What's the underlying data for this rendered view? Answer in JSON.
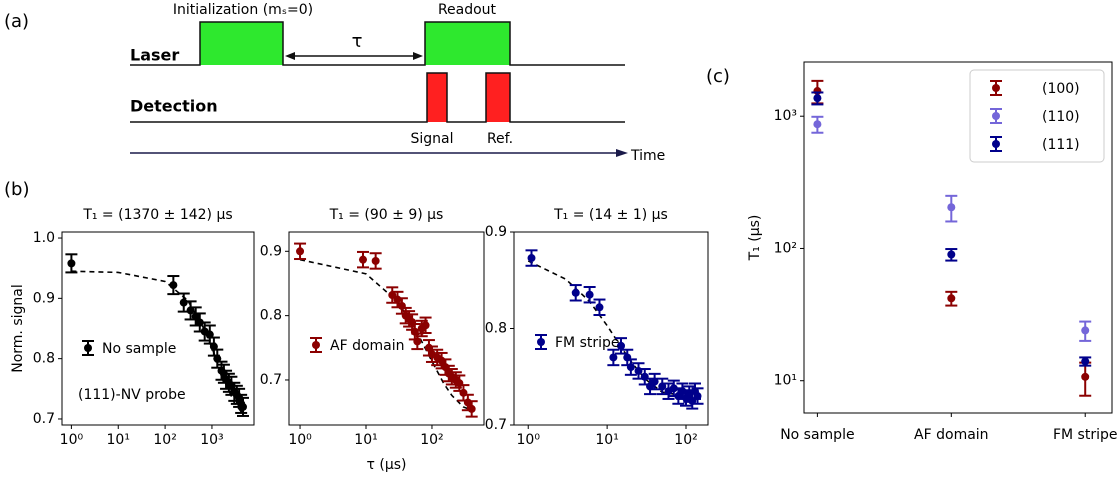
{
  "panels": [
    "(a)",
    "(b)",
    "(c)"
  ],
  "diagram": {
    "initialization": "Initialization (mₛ=0)",
    "readout": "Readout",
    "laser": "Laser",
    "detection": "Detection",
    "tau": "τ",
    "signal": "Signal",
    "ref": "Ref.",
    "time": "Time"
  },
  "chart_data": [
    {
      "type": "scatter",
      "title": "T₁ = (1370 ± 142) μs",
      "ylabel": "Norm. signal",
      "annotation": "(111)-NV probe",
      "xscale": "log",
      "xlim": [
        0.63,
        7900
      ],
      "ylim": [
        0.69,
        1.01
      ],
      "xticks": [
        {
          "value": 1,
          "label": "10⁰"
        },
        {
          "value": 10,
          "label": "10¹"
        },
        {
          "value": 100,
          "label": "10²"
        },
        {
          "value": 1000,
          "label": "10³"
        }
      ],
      "yticks": [
        0.7,
        0.8,
        0.9,
        {
          "value": 1,
          "label": "1.0"
        }
      ],
      "series": [
        {
          "name": "No sample",
          "color": "#000000",
          "x": [
            1,
            150,
            250,
            350,
            450,
            550,
            700,
            900,
            1100,
            1300,
            1600,
            1800,
            2000,
            2300,
            2600,
            3000,
            3400,
            3800,
            4200,
            4600
          ],
          "values": [
            0.958,
            0.922,
            0.893,
            0.88,
            0.87,
            0.86,
            0.845,
            0.84,
            0.82,
            0.8,
            0.78,
            0.775,
            0.765,
            0.76,
            0.755,
            0.745,
            0.74,
            0.735,
            0.725,
            0.72
          ],
          "errors": [
            0.015,
            0.015,
            0.015,
            0.015,
            0.015,
            0.015,
            0.015,
            0.015,
            0.015,
            0.015,
            0.015,
            0.015,
            0.015,
            0.015,
            0.015,
            0.015,
            0.015,
            0.015,
            0.015,
            0.015
          ]
        }
      ],
      "fit": {
        "x": [
          1,
          10,
          100,
          300,
          600,
          1000,
          1500,
          2000,
          3000,
          4500
        ],
        "values": [
          0.945,
          0.943,
          0.928,
          0.897,
          0.858,
          0.818,
          0.782,
          0.757,
          0.727,
          0.709
        ]
      }
    },
    {
      "type": "scatter",
      "title": "T₁ = (90 ± 9) μs",
      "xlabel": "τ (μs)",
      "xscale": "log",
      "xlim": [
        0.68,
        615
      ],
      "ylim": [
        0.63,
        0.93
      ],
      "xticks": [
        {
          "value": 1,
          "label": "10⁰"
        },
        {
          "value": 10,
          "label": "10¹"
        },
        {
          "value": 100,
          "label": "10²"
        }
      ],
      "yticks": [
        0.7,
        0.8,
        0.9
      ],
      "series": [
        {
          "name": "AF domain",
          "color": "#8b0000",
          "x": [
            1,
            9,
            14,
            25,
            30,
            35,
            40,
            45,
            50,
            55,
            60,
            70,
            80,
            90,
            100,
            120,
            140,
            160,
            180,
            200,
            230,
            260,
            300,
            350,
            400
          ],
          "values": [
            0.9,
            0.887,
            0.885,
            0.832,
            0.825,
            0.815,
            0.8,
            0.795,
            0.79,
            0.775,
            0.76,
            0.78,
            0.785,
            0.75,
            0.74,
            0.735,
            0.73,
            0.72,
            0.71,
            0.705,
            0.7,
            0.695,
            0.68,
            0.665,
            0.655
          ],
          "errors": [
            0.012,
            0.012,
            0.012,
            0.012,
            0.012,
            0.012,
            0.012,
            0.012,
            0.012,
            0.012,
            0.012,
            0.012,
            0.012,
            0.012,
            0.012,
            0.012,
            0.012,
            0.012,
            0.012,
            0.012,
            0.012,
            0.012,
            0.012,
            0.012,
            0.012
          ]
        }
      ],
      "fit": {
        "x": [
          1,
          10,
          30,
          60,
          100,
          150,
          200,
          300,
          400
        ],
        "values": [
          0.887,
          0.865,
          0.822,
          0.773,
          0.729,
          0.695,
          0.676,
          0.658,
          0.653
        ]
      }
    },
    {
      "type": "scatter",
      "title": "T₁ = (14 ± 1) μs",
      "xscale": "log",
      "xlim": [
        0.66,
        190
      ],
      "ylim": [
        0.7,
        0.9
      ],
      "xticks": [
        {
          "value": 1,
          "label": "10⁰"
        },
        {
          "value": 10,
          "label": "10¹"
        },
        {
          "value": 100,
          "label": "10²"
        }
      ],
      "yticks": [
        0.7,
        0.8,
        0.9
      ],
      "series": [
        {
          "name": "FM stripe",
          "color": "#00008b",
          "x": [
            1.1,
            4,
            6,
            8,
            12,
            15,
            18,
            20,
            25,
            30,
            35,
            40,
            50,
            60,
            70,
            80,
            90,
            100,
            110,
            120,
            130,
            140
          ],
          "values": [
            0.873,
            0.837,
            0.835,
            0.822,
            0.77,
            0.782,
            0.77,
            0.76,
            0.756,
            0.75,
            0.74,
            0.745,
            0.74,
            0.735,
            0.738,
            0.73,
            0.735,
            0.728,
            0.732,
            0.725,
            0.735,
            0.73
          ],
          "errors": [
            0.008,
            0.008,
            0.008,
            0.008,
            0.008,
            0.008,
            0.008,
            0.008,
            0.008,
            0.008,
            0.008,
            0.008,
            0.008,
            0.008,
            0.008,
            0.008,
            0.008,
            0.008,
            0.008,
            0.008,
            0.008,
            0.008
          ]
        }
      ],
      "fit": {
        "x": [
          1,
          3,
          6,
          10,
          15,
          20,
          30,
          50,
          100,
          150
        ],
        "values": [
          0.87,
          0.851,
          0.828,
          0.803,
          0.781,
          0.766,
          0.748,
          0.734,
          0.73,
          0.73
        ]
      }
    },
    {
      "type": "category-scatter",
      "ylabel": "T₁ (μs)",
      "yscale": "log",
      "legend": "upper right",
      "categories": [
        "No sample",
        "AF domain",
        "FM stripe"
      ],
      "ylim": [
        5.7,
        2570
      ],
      "yticks": [
        {
          "value": 10,
          "label": "10¹"
        },
        {
          "value": 100,
          "label": "10²"
        },
        {
          "value": 1000,
          "label": "10³"
        }
      ],
      "series": [
        {
          "name": "(100)",
          "color": "#8b0000",
          "values": [
            1550,
            42,
            10.7
          ],
          "errors": [
            300,
            5,
            3
          ]
        },
        {
          "name": "(110)",
          "color": "#7466d9",
          "values": [
            870,
            205,
            24
          ],
          "errors": [
            120,
            45,
            4
          ]
        },
        {
          "name": "(111)",
          "color": "#00008b",
          "values": [
            1370,
            90,
            14
          ],
          "errors": [
            142,
            9,
            1
          ]
        }
      ]
    }
  ]
}
